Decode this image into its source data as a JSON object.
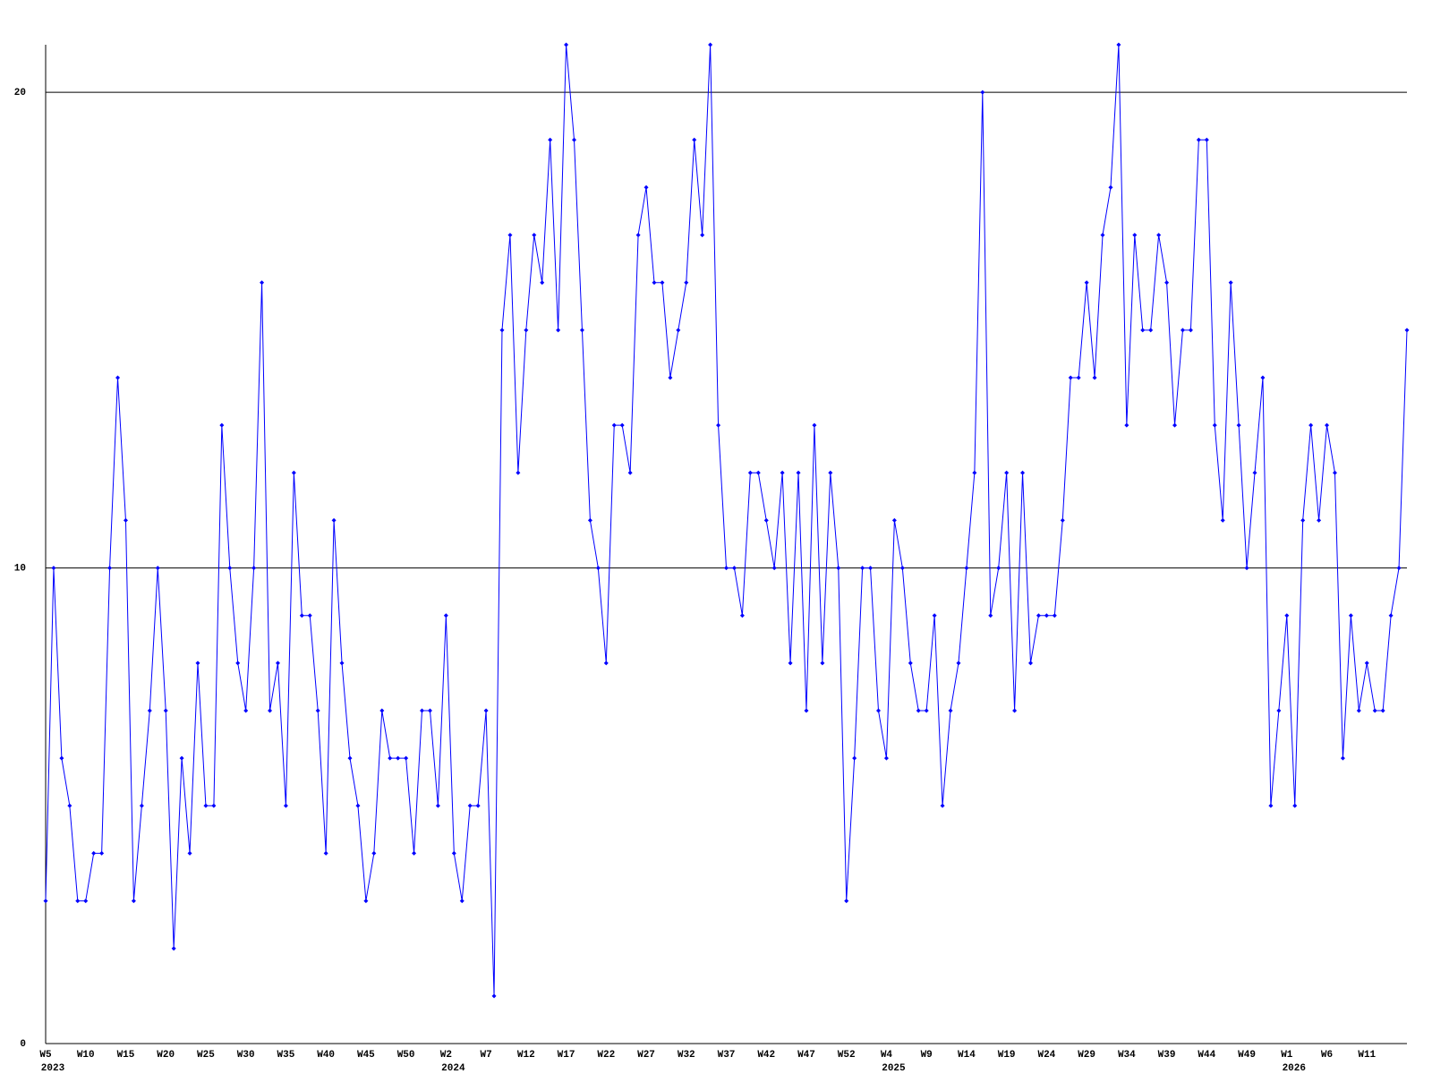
{
  "chart_data": {
    "type": "line",
    "categories": [
      "W5",
      null,
      null,
      null,
      null,
      "W10",
      null,
      null,
      null,
      null,
      "W15",
      null,
      null,
      null,
      null,
      "W20",
      null,
      null,
      null,
      null,
      "W25",
      null,
      null,
      null,
      null,
      "W30",
      null,
      null,
      null,
      null,
      "W35",
      null,
      null,
      null,
      null,
      "W40",
      null,
      null,
      null,
      null,
      "W45",
      null,
      null,
      null,
      null,
      "W50",
      null,
      null,
      null,
      null,
      "W2",
      null,
      null,
      null,
      null,
      "W7",
      null,
      null,
      null,
      null,
      "W12",
      null,
      null,
      null,
      null,
      "W17",
      null,
      null,
      null,
      null,
      "W22",
      null,
      null,
      null,
      null,
      "W27",
      null,
      null,
      null,
      null,
      "W32",
      null,
      null,
      null,
      null,
      "W37",
      null,
      null,
      null,
      null,
      "W42",
      null,
      null,
      null,
      null,
      "W47",
      null,
      null,
      null,
      null,
      "W52",
      null,
      null,
      null,
      null,
      "W4",
      null,
      null,
      null,
      null,
      "W9",
      null,
      null,
      null,
      null,
      "W14",
      null,
      null,
      null,
      null,
      "W19",
      null,
      null,
      null,
      null,
      "W24",
      null,
      null,
      null,
      null,
      "W29",
      null,
      null,
      null,
      null,
      "W34",
      null,
      null,
      null,
      null,
      "W39",
      null,
      null,
      null,
      null,
      "W44",
      null,
      null,
      null,
      null,
      "W49",
      null,
      null,
      null,
      null,
      "W1",
      null,
      null,
      null,
      null,
      "W6",
      null,
      null,
      null,
      null,
      "W11",
      null,
      null,
      null,
      null,
      null
    ],
    "category_years": [
      "2023",
      null,
      null,
      null,
      null,
      null,
      null,
      null,
      null,
      null,
      null,
      null,
      null,
      null,
      null,
      null,
      null,
      null,
      null,
      null,
      null,
      null,
      null,
      null,
      null,
      null,
      null,
      null,
      null,
      null,
      null,
      null,
      null,
      null,
      null,
      null,
      null,
      null,
      null,
      null,
      null,
      null,
      null,
      null,
      null,
      null,
      null,
      null,
      null,
      null,
      "2024",
      null,
      null,
      null,
      null,
      null,
      null,
      null,
      null,
      null,
      null,
      null,
      null,
      null,
      null,
      null,
      null,
      null,
      null,
      null,
      null,
      null,
      null,
      null,
      null,
      null,
      null,
      null,
      null,
      null,
      null,
      null,
      null,
      null,
      null,
      null,
      null,
      null,
      null,
      null,
      null,
      null,
      null,
      null,
      null,
      null,
      null,
      null,
      null,
      null,
      null,
      null,
      null,
      null,
      null,
      "2025",
      null,
      null,
      null,
      null,
      null,
      null,
      null,
      null,
      null,
      null,
      null,
      null,
      null,
      null,
      null,
      null,
      null,
      null,
      null,
      null,
      null,
      null,
      null,
      null,
      null,
      null,
      null,
      null,
      null,
      null,
      null,
      null,
      null,
      null,
      null,
      null,
      null,
      null,
      null,
      null,
      null,
      null,
      null,
      null,
      null,
      null,
      null,
      null,
      null,
      "2026",
      null,
      null,
      null,
      null,
      null,
      null,
      null,
      null,
      null,
      null,
      null,
      null,
      null,
      null,
      null
    ],
    "series": [
      {
        "color": "#0000ff",
        "values": [
          3,
          10,
          6,
          5,
          3,
          3,
          4,
          4,
          10,
          14,
          11,
          3,
          5,
          7,
          10,
          7,
          2,
          6,
          4,
          8,
          5,
          5,
          13,
          10,
          8,
          7,
          10,
          16,
          7,
          8,
          5,
          12,
          9,
          9,
          7,
          4,
          11,
          8,
          6,
          5,
          3,
          4,
          7,
          6,
          6,
          6,
          4,
          7,
          7,
          5,
          9,
          4,
          3,
          5,
          5,
          7,
          1,
          15,
          17,
          12,
          15,
          17,
          16,
          19,
          15,
          21,
          19,
          15,
          11,
          10,
          8,
          13,
          13,
          12,
          17,
          18,
          16,
          16,
          14,
          15,
          16,
          19,
          17,
          21,
          13,
          10,
          10,
          9,
          12,
          12,
          11,
          10,
          12,
          8,
          12,
          7,
          13,
          8,
          12,
          10,
          3,
          6,
          10,
          10,
          7,
          6,
          11,
          10,
          8,
          7,
          7,
          9,
          5,
          7,
          8,
          10,
          12,
          20,
          9,
          10,
          12,
          7,
          12,
          8,
          9,
          9,
          9,
          11,
          14,
          14,
          16,
          14,
          17,
          18,
          21,
          13,
          17,
          15,
          15,
          17,
          16,
          13,
          15,
          15,
          19,
          19,
          13,
          11,
          16,
          13,
          10,
          12,
          14,
          5,
          7,
          9,
          5,
          11,
          13,
          11,
          13,
          12,
          6,
          9,
          7,
          8,
          7,
          7,
          9,
          10,
          15
        ]
      }
    ],
    "ylim": [
      0,
      21
    ],
    "yticks": [
      0,
      10,
      20
    ],
    "grid": true
  }
}
